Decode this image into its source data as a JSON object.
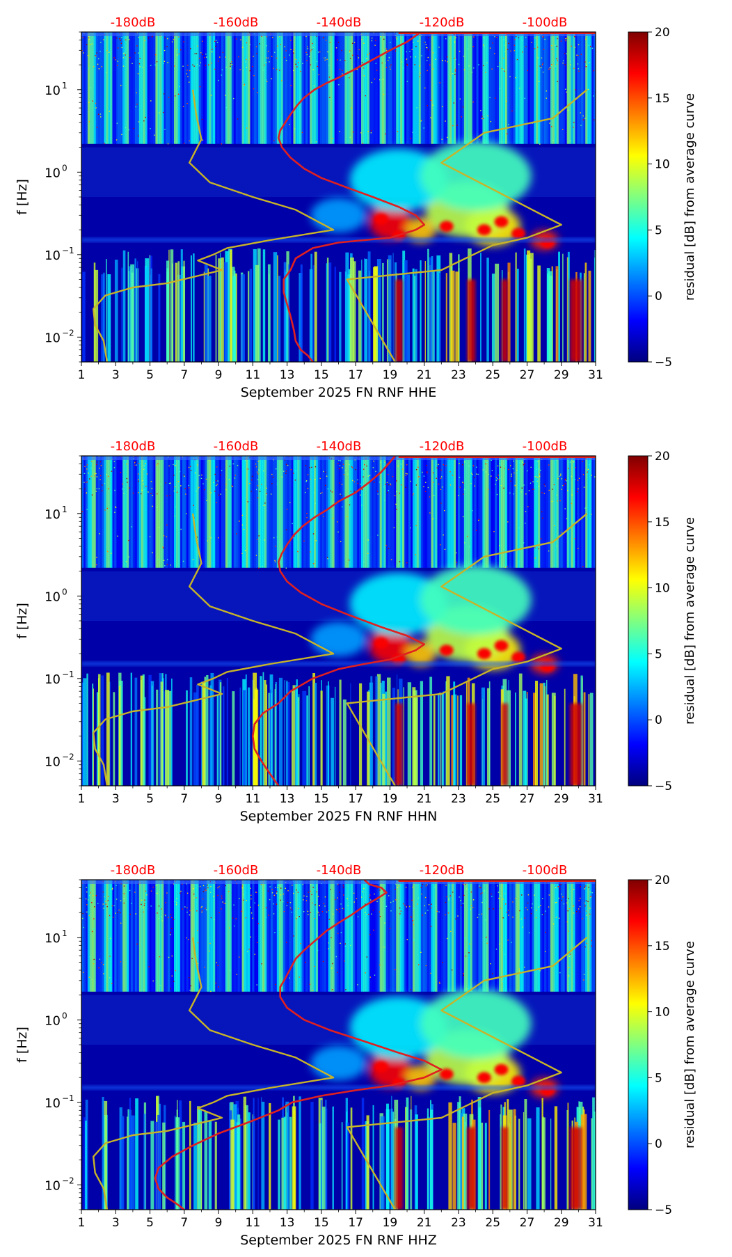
{
  "chart_data": [
    {
      "type": "heatmap",
      "xlabel": "September 2025 FN RNF  HHE",
      "ylabel": "f [Hz]",
      "colorbar_label": "residual [dB] from average curve",
      "x_ticks": [
        "1",
        "3",
        "5",
        "7",
        "9",
        "11",
        "13",
        "15",
        "17",
        "19",
        "21",
        "23",
        "25",
        "27",
        "29",
        "31"
      ],
      "y_ticks": [
        "10^-2",
        "10^-1",
        "10^0",
        "10^1"
      ],
      "top_ticks": [
        "-180dB",
        "-160dB",
        "-140dB",
        "-120dB",
        "-100dB"
      ],
      "colorbar_ticks": [
        "-5",
        "0",
        "5",
        "10",
        "15",
        "20"
      ],
      "xlim": [
        1,
        31
      ],
      "ylim_hz": [
        0.005,
        50
      ],
      "clim": [
        -5,
        20
      ],
      "red_curve": [
        [
          14.5,
          0.005
        ],
        [
          14.2,
          0.006
        ],
        [
          13.8,
          0.007
        ],
        [
          13.5,
          0.009
        ],
        [
          13.4,
          0.012
        ],
        [
          13.2,
          0.018
        ],
        [
          13.0,
          0.025
        ],
        [
          12.8,
          0.035
        ],
        [
          12.8,
          0.05
        ],
        [
          13.2,
          0.065
        ],
        [
          13.5,
          0.09
        ],
        [
          14.5,
          0.12
        ],
        [
          16,
          0.14
        ],
        [
          17.5,
          0.15
        ],
        [
          19,
          0.16
        ],
        [
          20.5,
          0.2
        ],
        [
          21,
          0.23
        ],
        [
          20.5,
          0.3
        ],
        [
          19.5,
          0.38
        ],
        [
          18,
          0.5
        ],
        [
          16.5,
          0.65
        ],
        [
          15,
          0.85
        ],
        [
          14,
          1.1
        ],
        [
          13.2,
          1.5
        ],
        [
          12.7,
          2.0
        ],
        [
          12.5,
          2.6
        ],
        [
          12.6,
          3.2
        ],
        [
          12.9,
          4.0
        ],
        [
          13.2,
          5.0
        ],
        [
          13.6,
          6.5
        ],
        [
          14.0,
          8.0
        ],
        [
          14.6,
          10
        ],
        [
          15.3,
          12
        ],
        [
          16,
          14
        ],
        [
          16.8,
          17
        ],
        [
          17.8,
          22
        ],
        [
          19,
          30
        ],
        [
          20,
          38
        ],
        [
          20.5,
          45
        ],
        [
          20.8,
          50
        ]
      ],
      "yellow_curve": [
        [
          2.5,
          0.005
        ],
        [
          2.3,
          0.009
        ],
        [
          1.8,
          0.014
        ],
        [
          1.7,
          0.022
        ],
        [
          2.4,
          0.032
        ],
        [
          4,
          0.04
        ],
        [
          6,
          0.045
        ],
        [
          9.2,
          0.065
        ],
        [
          7.8,
          0.085
        ],
        [
          8.7,
          0.1
        ],
        [
          9.5,
          0.12
        ],
        [
          12,
          0.15
        ],
        [
          15.7,
          0.2
        ],
        [
          13.5,
          0.35
        ],
        [
          11,
          0.5
        ],
        [
          8.5,
          0.75
        ],
        [
          7.3,
          1.3
        ],
        [
          8.0,
          2.5
        ],
        [
          7.7,
          5.0
        ],
        [
          7.5,
          10
        ],
        null,
        [
          19.3,
          0.005
        ],
        [
          16.5,
          0.05
        ],
        [
          22,
          0.065
        ],
        [
          25,
          0.13
        ],
        [
          27,
          0.16
        ],
        [
          29,
          0.23
        ],
        [
          22,
          1.3
        ],
        [
          24.5,
          3.0
        ],
        [
          28.5,
          4.5
        ],
        [
          30.5,
          10
        ]
      ]
    },
    {
      "type": "heatmap",
      "xlabel": "September 2025 FN RNF  HHN",
      "ylabel": "f [Hz]",
      "colorbar_label": "residual [dB] from average curve",
      "x_ticks": [
        "1",
        "3",
        "5",
        "7",
        "9",
        "11",
        "13",
        "15",
        "17",
        "19",
        "21",
        "23",
        "25",
        "27",
        "29",
        "31"
      ],
      "y_ticks": [
        "10^-2",
        "10^-1",
        "10^0",
        "10^1"
      ],
      "top_ticks": [
        "-180dB",
        "-160dB",
        "-140dB",
        "-120dB",
        "-100dB"
      ],
      "colorbar_ticks": [
        "-5",
        "0",
        "5",
        "10",
        "15",
        "20"
      ],
      "xlim": [
        1,
        31
      ],
      "ylim_hz": [
        0.005,
        50
      ],
      "clim": [
        -5,
        20
      ],
      "red_curve": [
        [
          12.5,
          0.005
        ],
        [
          12.0,
          0.007
        ],
        [
          11.5,
          0.01
        ],
        [
          11.1,
          0.014
        ],
        [
          11.0,
          0.02
        ],
        [
          11.1,
          0.028
        ],
        [
          11.6,
          0.038
        ],
        [
          12.5,
          0.05
        ],
        [
          13.2,
          0.07
        ],
        [
          14.5,
          0.1
        ],
        [
          16,
          0.13
        ],
        [
          17.5,
          0.15
        ],
        [
          19,
          0.17
        ],
        [
          20.5,
          0.22
        ],
        [
          21,
          0.26
        ],
        [
          20,
          0.33
        ],
        [
          18.5,
          0.42
        ],
        [
          16.5,
          0.6
        ],
        [
          15,
          0.8
        ],
        [
          13.8,
          1.1
        ],
        [
          13.0,
          1.5
        ],
        [
          12.6,
          2.0
        ],
        [
          12.5,
          2.6
        ],
        [
          12.7,
          3.3
        ],
        [
          13.0,
          4.2
        ],
        [
          13.4,
          5.5
        ],
        [
          13.9,
          7.0
        ],
        [
          14.6,
          9.0
        ],
        [
          15.3,
          11
        ],
        [
          16,
          14
        ],
        [
          17,
          18
        ],
        [
          17.8,
          24
        ],
        [
          18.5,
          32
        ],
        [
          19,
          42
        ],
        [
          19.3,
          50
        ]
      ],
      "yellow_curve": [
        [
          2.5,
          0.005
        ],
        [
          2.3,
          0.009
        ],
        [
          1.8,
          0.014
        ],
        [
          1.7,
          0.022
        ],
        [
          2.4,
          0.032
        ],
        [
          4,
          0.04
        ],
        [
          6,
          0.045
        ],
        [
          9.2,
          0.065
        ],
        [
          7.8,
          0.085
        ],
        [
          8.7,
          0.1
        ],
        [
          9.5,
          0.12
        ],
        [
          12,
          0.15
        ],
        [
          15.7,
          0.2
        ],
        [
          13.5,
          0.35
        ],
        [
          11,
          0.5
        ],
        [
          8.5,
          0.75
        ],
        [
          7.3,
          1.3
        ],
        [
          8.0,
          2.5
        ],
        [
          7.7,
          5.0
        ],
        [
          7.5,
          10
        ],
        null,
        [
          19.3,
          0.005
        ],
        [
          16.5,
          0.05
        ],
        [
          22,
          0.065
        ],
        [
          25,
          0.13
        ],
        [
          27,
          0.16
        ],
        [
          29,
          0.23
        ],
        [
          22,
          1.3
        ],
        [
          24.5,
          3.0
        ],
        [
          28.5,
          4.5
        ],
        [
          30.5,
          10
        ]
      ]
    },
    {
      "type": "heatmap",
      "xlabel": "September 2025 FN RNF  HHZ",
      "ylabel": "f [Hz]",
      "colorbar_label": "residual [dB] from average curve",
      "x_ticks": [
        "1",
        "3",
        "5",
        "7",
        "9",
        "11",
        "13",
        "15",
        "17",
        "19",
        "21",
        "23",
        "25",
        "27",
        "29",
        "31"
      ],
      "y_ticks": [
        "10^-2",
        "10^-1",
        "10^0",
        "10^1"
      ],
      "top_ticks": [
        "-180dB",
        "-160dB",
        "-140dB",
        "-120dB",
        "-100dB"
      ],
      "colorbar_ticks": [
        "-5",
        "0",
        "5",
        "10",
        "15",
        "20"
      ],
      "xlim": [
        1,
        31
      ],
      "ylim_hz": [
        0.005,
        50
      ],
      "clim": [
        -5,
        20
      ],
      "red_curve": [
        [
          7.0,
          0.005
        ],
        [
          6.5,
          0.006
        ],
        [
          6.0,
          0.007
        ],
        [
          5.5,
          0.009
        ],
        [
          5.3,
          0.012
        ],
        [
          5.5,
          0.016
        ],
        [
          6.3,
          0.022
        ],
        [
          7.5,
          0.03
        ],
        [
          9,
          0.042
        ],
        [
          11,
          0.06
        ],
        [
          12.5,
          0.08
        ],
        [
          13.3,
          0.1
        ],
        [
          15,
          0.12
        ],
        [
          17,
          0.14
        ],
        [
          19,
          0.16
        ],
        [
          21,
          0.2
        ],
        [
          22,
          0.25
        ],
        [
          21,
          0.32
        ],
        [
          19.5,
          0.4
        ],
        [
          17.5,
          0.55
        ],
        [
          15.5,
          0.75
        ],
        [
          14,
          1.0
        ],
        [
          13,
          1.4
        ],
        [
          12.6,
          1.9
        ],
        [
          12.6,
          2.5
        ],
        [
          12.9,
          3.2
        ],
        [
          13.2,
          4.2
        ],
        [
          13.5,
          5.5
        ],
        [
          14,
          7
        ],
        [
          14.6,
          9
        ],
        [
          15.3,
          12
        ],
        [
          16,
          15
        ],
        [
          16.8,
          19
        ],
        [
          17.5,
          24
        ],
        [
          18.3,
          30
        ],
        [
          18.8,
          35
        ],
        [
          18.5,
          40
        ],
        [
          17.8,
          44
        ],
        [
          17.5,
          50
        ]
      ],
      "yellow_curve": [
        [
          2.5,
          0.005
        ],
        [
          2.3,
          0.009
        ],
        [
          1.8,
          0.014
        ],
        [
          1.7,
          0.022
        ],
        [
          2.4,
          0.032
        ],
        [
          4,
          0.04
        ],
        [
          6,
          0.045
        ],
        [
          9.2,
          0.065
        ],
        [
          7.8,
          0.085
        ],
        [
          8.7,
          0.1
        ],
        [
          9.5,
          0.12
        ],
        [
          12,
          0.15
        ],
        [
          15.7,
          0.2
        ],
        [
          13.5,
          0.35
        ],
        [
          11,
          0.5
        ],
        [
          8.5,
          0.75
        ],
        [
          7.3,
          1.3
        ],
        [
          8.0,
          2.5
        ],
        [
          7.7,
          5.0
        ],
        [
          7.5,
          10
        ],
        null,
        [
          19.3,
          0.005
        ],
        [
          16.5,
          0.05
        ],
        [
          22,
          0.065
        ],
        [
          25,
          0.13
        ],
        [
          27,
          0.16
        ],
        [
          29,
          0.23
        ],
        [
          22,
          1.3
        ],
        [
          24.5,
          3.0
        ],
        [
          28.5,
          4.5
        ],
        [
          30.5,
          10
        ]
      ]
    }
  ],
  "colors": {
    "red_curve": "#e02020",
    "yellow_curve": "#c8b428",
    "top_tick_text": "#ff0000",
    "axis": "#000000"
  }
}
